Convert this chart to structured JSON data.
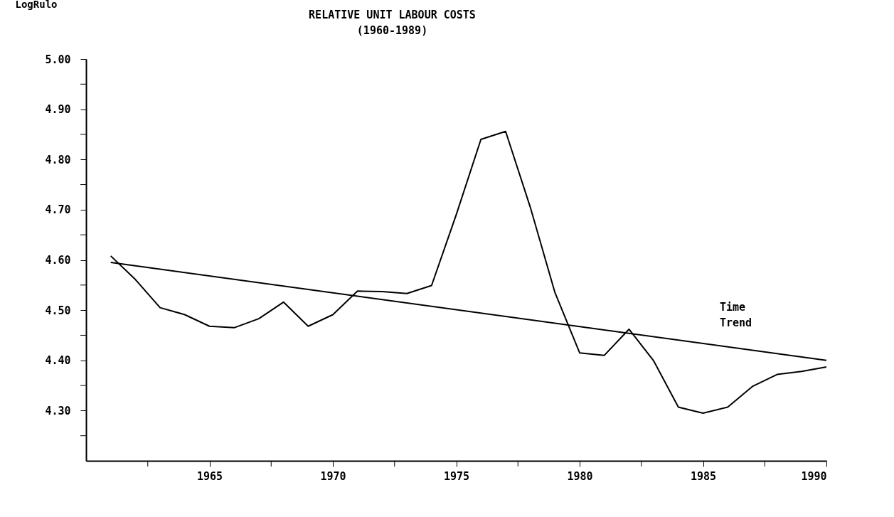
{
  "chart_data": {
    "type": "line",
    "title": "RELATIVE UNIT LABOUR COSTS",
    "subtitle": "(1960-1989)",
    "ylabel": "LogRulo",
    "xlim": [
      1960,
      1990
    ],
    "ylim": [
      4.2,
      5.0
    ],
    "xticks": [
      {
        "value": 1962.5,
        "label": null
      },
      1965,
      {
        "value": 1967.5,
        "label": null
      },
      1970,
      {
        "value": 1972.5,
        "label": null
      },
      1975,
      {
        "value": 1977.5,
        "label": null
      },
      1980,
      {
        "value": 1982.5,
        "label": null
      },
      1985,
      {
        "value": 1987.5,
        "label": null
      },
      1990
    ],
    "yticks": [
      {
        "value": 4.25,
        "label": null
      },
      {
        "value": 4.3,
        "label": "4.30"
      },
      {
        "value": 4.35,
        "label": null
      },
      {
        "value": 4.4,
        "label": "4.40"
      },
      {
        "value": 4.45,
        "label": null
      },
      {
        "value": 4.5,
        "label": "4.50"
      },
      {
        "value": 4.55,
        "label": null
      },
      {
        "value": 4.6,
        "label": "4.60"
      },
      {
        "value": 4.65,
        "label": null
      },
      {
        "value": 4.7,
        "label": "4.70"
      },
      {
        "value": 4.75,
        "label": null
      },
      {
        "value": 4.8,
        "label": "4.80"
      },
      {
        "value": 4.85,
        "label": null
      },
      {
        "value": 4.9,
        "label": "4.90"
      },
      {
        "value": 4.95,
        "label": null
      },
      {
        "value": 5.0,
        "label": "5.00"
      }
    ],
    "grid": false,
    "legend": false,
    "marker": "none",
    "line_style": "solid",
    "series": [
      {
        "color": "#000000",
        "x": [
          1961,
          1962,
          1963,
          1964,
          1965,
          1966,
          1967,
          1968,
          1969,
          1970,
          1971,
          1972,
          1973,
          1974,
          1975,
          1976,
          1977,
          1978,
          1979,
          1980,
          1981,
          1982,
          1983,
          1984,
          1985,
          1986,
          1987,
          1988,
          1989,
          1990
        ],
        "values": [
          4.608,
          4.561,
          4.505,
          4.491,
          4.468,
          4.465,
          4.483,
          4.516,
          4.468,
          4.491,
          4.538,
          4.537,
          4.533,
          4.549,
          4.69,
          4.84,
          4.856,
          4.705,
          4.535,
          4.415,
          4.41,
          4.462,
          4.399,
          4.307,
          4.295,
          4.307,
          4.348,
          4.372,
          4.378,
          4.387
        ]
      },
      {
        "name": "Time Trend",
        "type": "line",
        "color": "#000000",
        "x": [
          1961,
          1990
        ],
        "values": [
          4.595,
          4.4
        ]
      }
    ]
  }
}
